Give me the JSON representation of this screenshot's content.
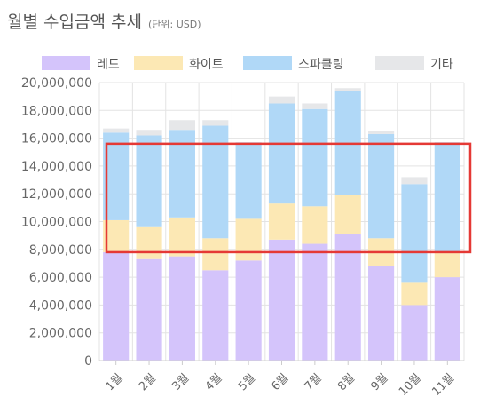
{
  "title": "월별 수입금액 추세",
  "subtitle": "(단위: USD)",
  "chart_data": {
    "type": "bar",
    "stacked": true,
    "categories": [
      "1월",
      "2월",
      "3월",
      "4월",
      "5월",
      "6월",
      "7월",
      "8월",
      "9월",
      "10월",
      "11월"
    ],
    "series": [
      {
        "name": "레드",
        "color": "#d4c4fb",
        "values": [
          7800000,
          7300000,
          7500000,
          6500000,
          7200000,
          8700000,
          8400000,
          9100000,
          6800000,
          4000000,
          6000000
        ]
      },
      {
        "name": "화이트",
        "color": "#fce8b4",
        "values": [
          2300000,
          2300000,
          2800000,
          2300000,
          3000000,
          2600000,
          2700000,
          2800000,
          2000000,
          1600000,
          1800000
        ]
      },
      {
        "name": "스파클링",
        "color": "#b0d8f7",
        "values": [
          6300000,
          6600000,
          6300000,
          8100000,
          5500000,
          7200000,
          7000000,
          7500000,
          7500000,
          7100000,
          7900000
        ]
      },
      {
        "name": "기타",
        "color": "#e6e7e9",
        "values": [
          300000,
          400000,
          700000,
          400000,
          0,
          500000,
          400000,
          200000,
          200000,
          500000,
          0
        ]
      }
    ],
    "ylim": [
      0,
      20000000
    ],
    "yticks": [
      "0",
      "2,000,000",
      "4,000,000",
      "6,000,000",
      "8,000,000",
      "10,000,000",
      "12,000,000",
      "14,000,000",
      "16,000,000",
      "18,000,000",
      "20,000,000"
    ],
    "highlight": {
      "from": 7800000,
      "to": 15600000,
      "color": "#e53935"
    },
    "grid": true,
    "legend": "top"
  }
}
